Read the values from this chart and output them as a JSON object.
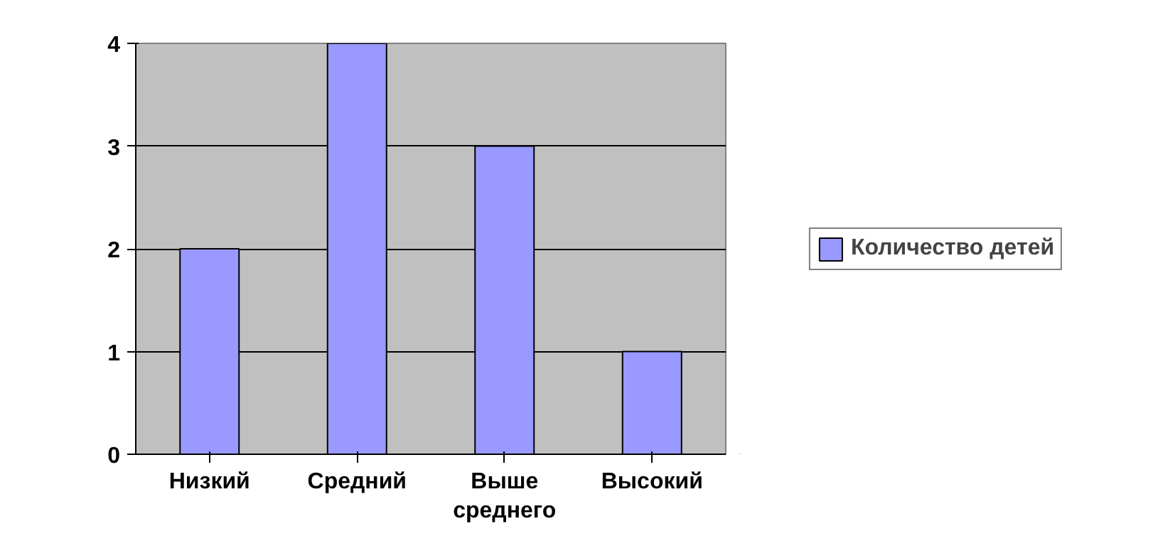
{
  "chart_data": {
    "type": "bar",
    "categories": [
      "Низкий",
      "Средний",
      "Выше\nсреднего",
      "Высокий"
    ],
    "series": [
      {
        "name": "Количество детей",
        "color": "#9999ff",
        "values": [
          2,
          4,
          3,
          1
        ]
      }
    ],
    "ylim": [
      0,
      4
    ],
    "yticks": [
      0,
      1,
      2,
      3,
      4
    ],
    "grid": "y",
    "legend": "right"
  }
}
